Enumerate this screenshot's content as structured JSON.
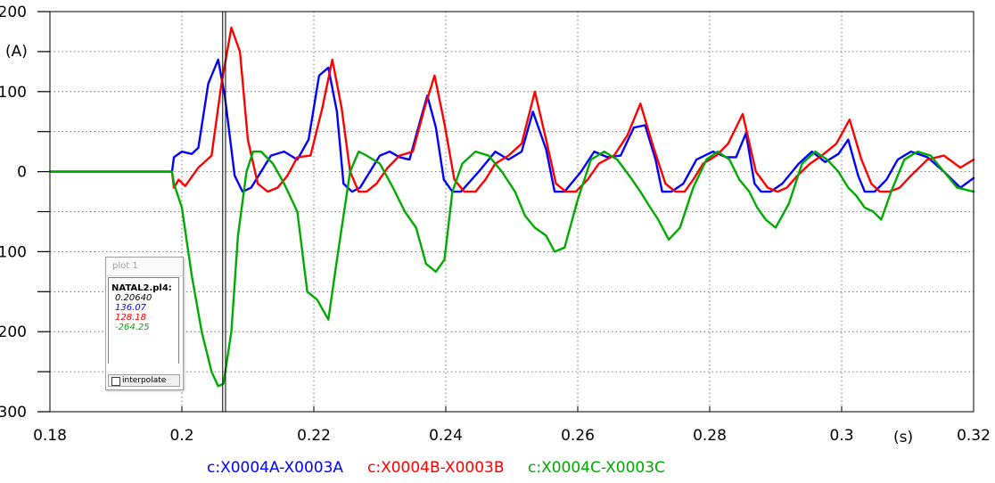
{
  "window": {
    "title": "plot 1"
  },
  "readout": {
    "title": "plot 1",
    "file": "NATAL2.pl4:",
    "values": [
      {
        "text": "0.20640",
        "color": "#000000"
      },
      {
        "text": "136.07",
        "color": "#0000ff"
      },
      {
        "text": "128.18",
        "color": "#ff0000"
      },
      {
        "text": "-264.25",
        "color": "#00aa00"
      }
    ],
    "interpolate_label": "interpolate",
    "interpolate_checked": false
  },
  "chart_data": {
    "type": "line",
    "title": "",
    "xlabel": "(s)",
    "ylabel": "(A)",
    "xlim": [
      0.18,
      0.32
    ],
    "ylim": [
      -300,
      200
    ],
    "xticks": [
      0.18,
      0.2,
      0.22,
      0.24,
      0.26,
      0.28,
      0.3,
      0.32
    ],
    "xtick_labels": [
      "0.18",
      "0.2",
      "0.22",
      "0.24",
      "0.26",
      "0.28",
      "0.3",
      "0.32"
    ],
    "yticks": [
      200,
      100,
      0,
      -100,
      -200,
      -300
    ],
    "ytick_labels": [
      "200",
      "100",
      "0",
      "-100",
      "-200",
      "-300"
    ],
    "grid": true,
    "legend_position": "bottom",
    "cursor_x": 0.2064,
    "series": [
      {
        "name": "c:X0004A-X0003A",
        "color": "#0000ff",
        "x": [
          0.18,
          0.1985,
          0.1988,
          0.2,
          0.2015,
          0.2025,
          0.204,
          0.2055,
          0.2065,
          0.208,
          0.2092,
          0.2105,
          0.212,
          0.2135,
          0.2155,
          0.2175,
          0.2192,
          0.2208,
          0.2222,
          0.2235,
          0.2245,
          0.2258,
          0.227,
          0.2285,
          0.23,
          0.2315,
          0.233,
          0.2345,
          0.236,
          0.2372,
          0.2385,
          0.2397,
          0.241,
          0.2423,
          0.245,
          0.2475,
          0.2495,
          0.2515,
          0.2532,
          0.2552,
          0.2565,
          0.258,
          0.2605,
          0.2625,
          0.2645,
          0.2665,
          0.2685,
          0.2702,
          0.2718,
          0.2728,
          0.2742,
          0.276,
          0.278,
          0.2805,
          0.2825,
          0.284,
          0.2855,
          0.2868,
          0.2878,
          0.2892,
          0.291,
          0.2935,
          0.2955,
          0.2975,
          0.2995,
          0.301,
          0.3025,
          0.3035,
          0.305,
          0.3068,
          0.3085,
          0.3105,
          0.313,
          0.3155,
          0.318,
          0.32
        ],
        "y": [
          0,
          0,
          18,
          25,
          22,
          30,
          110,
          140,
          95,
          -5,
          -25,
          -20,
          0,
          20,
          25,
          15,
          40,
          120,
          130,
          75,
          -15,
          -25,
          -20,
          0,
          20,
          25,
          18,
          15,
          60,
          95,
          55,
          -10,
          -25,
          -25,
          0,
          25,
          15,
          25,
          75,
          28,
          -25,
          -25,
          0,
          25,
          18,
          20,
          55,
          58,
          15,
          -25,
          -25,
          -15,
          15,
          25,
          18,
          18,
          48,
          -15,
          -25,
          -25,
          -15,
          10,
          25,
          12,
          22,
          40,
          -5,
          -25,
          -25,
          -10,
          15,
          25,
          18,
          0,
          -20,
          -8
        ]
      },
      {
        "name": "c:X0004B-X0003B",
        "color": "#ff0000",
        "x": [
          0.18,
          0.1985,
          0.1988,
          0.1995,
          0.2005,
          0.2025,
          0.2045,
          0.206,
          0.2075,
          0.2088,
          0.21,
          0.2115,
          0.213,
          0.2145,
          0.216,
          0.2175,
          0.2195,
          0.2213,
          0.2228,
          0.2242,
          0.2255,
          0.2268,
          0.228,
          0.2295,
          0.2312,
          0.233,
          0.235,
          0.2368,
          0.2383,
          0.2398,
          0.2413,
          0.2428,
          0.2445,
          0.246,
          0.2475,
          0.2495,
          0.2515,
          0.2535,
          0.2552,
          0.2567,
          0.2582,
          0.2597,
          0.2615,
          0.2632,
          0.2655,
          0.2675,
          0.2695,
          0.2715,
          0.2733,
          0.2748,
          0.2762,
          0.2775,
          0.279,
          0.281,
          0.2828,
          0.285,
          0.287,
          0.2888,
          0.2903,
          0.2917,
          0.2933,
          0.2952,
          0.297,
          0.2992,
          0.3012,
          0.303,
          0.3045,
          0.3058,
          0.3072,
          0.3088,
          0.3105,
          0.313,
          0.3155,
          0.318,
          0.32
        ],
        "y": [
          0,
          0,
          -20,
          -10,
          -18,
          5,
          20,
          110,
          180,
          150,
          40,
          -15,
          -25,
          -20,
          -5,
          18,
          20,
          80,
          140,
          80,
          0,
          -25,
          -25,
          -15,
          5,
          20,
          25,
          80,
          120,
          60,
          -10,
          -25,
          -25,
          -10,
          10,
          20,
          35,
          100,
          40,
          -15,
          -25,
          -25,
          -10,
          10,
          20,
          45,
          85,
          30,
          -15,
          -25,
          -25,
          -10,
          10,
          20,
          35,
          72,
          0,
          -20,
          -25,
          -20,
          -5,
          10,
          20,
          35,
          65,
          15,
          -15,
          -25,
          -25,
          -20,
          -5,
          15,
          20,
          5,
          15
        ]
      },
      {
        "name": "c:X0004C-X0003C",
        "color": "#00aa00",
        "x": [
          0.18,
          0.1985,
          0.1988,
          0.2,
          0.2015,
          0.203,
          0.2045,
          0.2055,
          0.2063,
          0.2075,
          0.2085,
          0.2098,
          0.2108,
          0.212,
          0.2138,
          0.2155,
          0.2175,
          0.219,
          0.2205,
          0.2222,
          0.2235,
          0.2255,
          0.2268,
          0.228,
          0.23,
          0.232,
          0.2338,
          0.2355,
          0.237,
          0.2385,
          0.2398,
          0.241,
          0.2425,
          0.2445,
          0.2465,
          0.2485,
          0.2505,
          0.252,
          0.2535,
          0.2552,
          0.2565,
          0.258,
          0.26,
          0.262,
          0.264,
          0.266,
          0.2678,
          0.2695,
          0.271,
          0.2722,
          0.2738,
          0.2755,
          0.2775,
          0.2795,
          0.2812,
          0.283,
          0.2845,
          0.286,
          0.2872,
          0.2885,
          0.29,
          0.292,
          0.294,
          0.296,
          0.2978,
          0.2995,
          0.301,
          0.3022,
          0.3035,
          0.3048,
          0.306,
          0.3075,
          0.3095,
          0.3115,
          0.3135,
          0.3155,
          0.3175,
          0.32
        ],
        "y": [
          0,
          0,
          -15,
          -45,
          -130,
          -200,
          -250,
          -268,
          -265,
          -200,
          -80,
          0,
          25,
          25,
          10,
          -15,
          -50,
          -150,
          -160,
          -185,
          -110,
          0,
          25,
          20,
          10,
          -20,
          -50,
          -70,
          -115,
          -125,
          -110,
          -25,
          10,
          25,
          20,
          0,
          -25,
          -55,
          -70,
          -80,
          -100,
          -95,
          -35,
          15,
          25,
          15,
          -5,
          -25,
          -45,
          -60,
          -85,
          -70,
          -20,
          15,
          25,
          15,
          -10,
          -25,
          -45,
          -60,
          -70,
          -40,
          10,
          25,
          15,
          0,
          -20,
          -30,
          -45,
          -50,
          -60,
          -25,
          15,
          25,
          20,
          0,
          -20,
          -25
        ]
      }
    ]
  }
}
